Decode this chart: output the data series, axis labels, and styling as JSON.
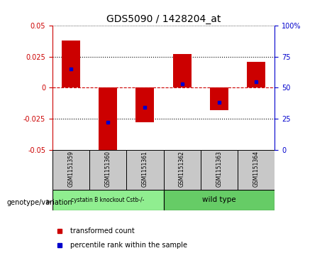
{
  "title": "GDS5090 / 1428204_at",
  "samples": [
    "GSM1151359",
    "GSM1151360",
    "GSM1151361",
    "GSM1151362",
    "GSM1151363",
    "GSM1151364"
  ],
  "transformed_counts": [
    0.038,
    -0.053,
    -0.028,
    0.027,
    -0.018,
    0.021
  ],
  "percentile_ranks": [
    65,
    22,
    34,
    53,
    38,
    55
  ],
  "group_labels": [
    "cystatin B knockout Cstb-/-",
    "wild type"
  ],
  "group_bg_colors": [
    "#90EE90",
    "#66CC66"
  ],
  "ylim_left": [
    -0.05,
    0.05
  ],
  "ylim_right": [
    0,
    100
  ],
  "yticks_left": [
    -0.05,
    -0.025,
    0,
    0.025,
    0.05
  ],
  "yticks_right": [
    0,
    25,
    50,
    75,
    100
  ],
  "bar_color": "#CC0000",
  "dot_color": "#0000CC",
  "bar_width": 0.5,
  "genotype_label": "genotype/variation",
  "legend_red": "transformed count",
  "legend_blue": "percentile rank within the sample",
  "left_tick_color": "#CC0000",
  "right_tick_color": "#0000CC",
  "zero_line_color": "#CC0000",
  "sample_box_color": "#C8C8C8",
  "n_knockout": 3,
  "n_wildtype": 3
}
